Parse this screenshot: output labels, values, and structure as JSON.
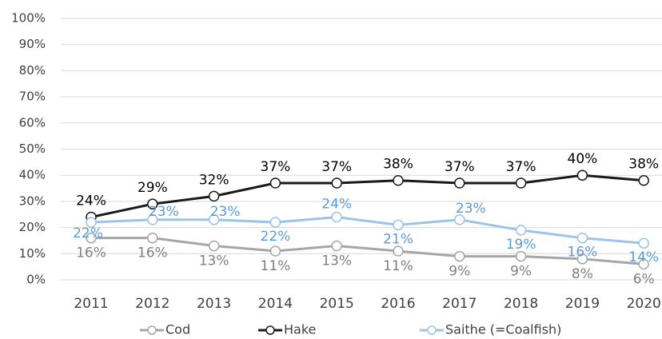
{
  "chart_data": {
    "type": "line",
    "categories": [
      "2011",
      "2012",
      "2013",
      "2014",
      "2015",
      "2016",
      "2017",
      "2018",
      "2019",
      "2020"
    ],
    "series": [
      {
        "name": "Cod",
        "color": "#a6a6a6",
        "label_color": "#7f7f7f",
        "values": [
          16,
          16,
          13,
          11,
          13,
          11,
          9,
          9,
          8,
          6
        ],
        "value_labels": [
          "16%",
          "16%",
          "13%",
          "11%",
          "13%",
          "11%",
          "9%",
          "9%",
          "8%",
          "6%"
        ]
      },
      {
        "name": "Hake",
        "color": "#1a1a1a",
        "label_color": "#000000",
        "values": [
          24,
          29,
          32,
          37,
          37,
          38,
          37,
          37,
          40,
          38
        ],
        "value_labels": [
          "24%",
          "29%",
          "32%",
          "37%",
          "37%",
          "38%",
          "37%",
          "37%",
          "40%",
          "38%"
        ]
      },
      {
        "name": "Saithe (=Coalfish)",
        "color": "#9dc3e6",
        "label_color": "#5b9bd5",
        "values": [
          22,
          23,
          23,
          22,
          24,
          21,
          23,
          19,
          16,
          14
        ],
        "value_labels": [
          "22%",
          "23%",
          "23%",
          "22%",
          "24%",
          "21%",
          "23%",
          "19%",
          "16%",
          "14%"
        ]
      }
    ],
    "ylim": [
      0,
      100
    ],
    "yticks": [
      {
        "value": 0,
        "label": "0%"
      },
      {
        "value": 10,
        "label": "10%"
      },
      {
        "value": 20,
        "label": "20%"
      },
      {
        "value": 30,
        "label": "30%"
      },
      {
        "value": 40,
        "label": "40%"
      },
      {
        "value": 50,
        "label": "50%"
      },
      {
        "value": 60,
        "label": "60%"
      },
      {
        "value": 70,
        "label": "70%"
      },
      {
        "value": 80,
        "label": "80%"
      },
      {
        "value": 90,
        "label": "90%"
      },
      {
        "value": 100,
        "label": "100%"
      }
    ],
    "grid": true,
    "legend": "bottom"
  }
}
